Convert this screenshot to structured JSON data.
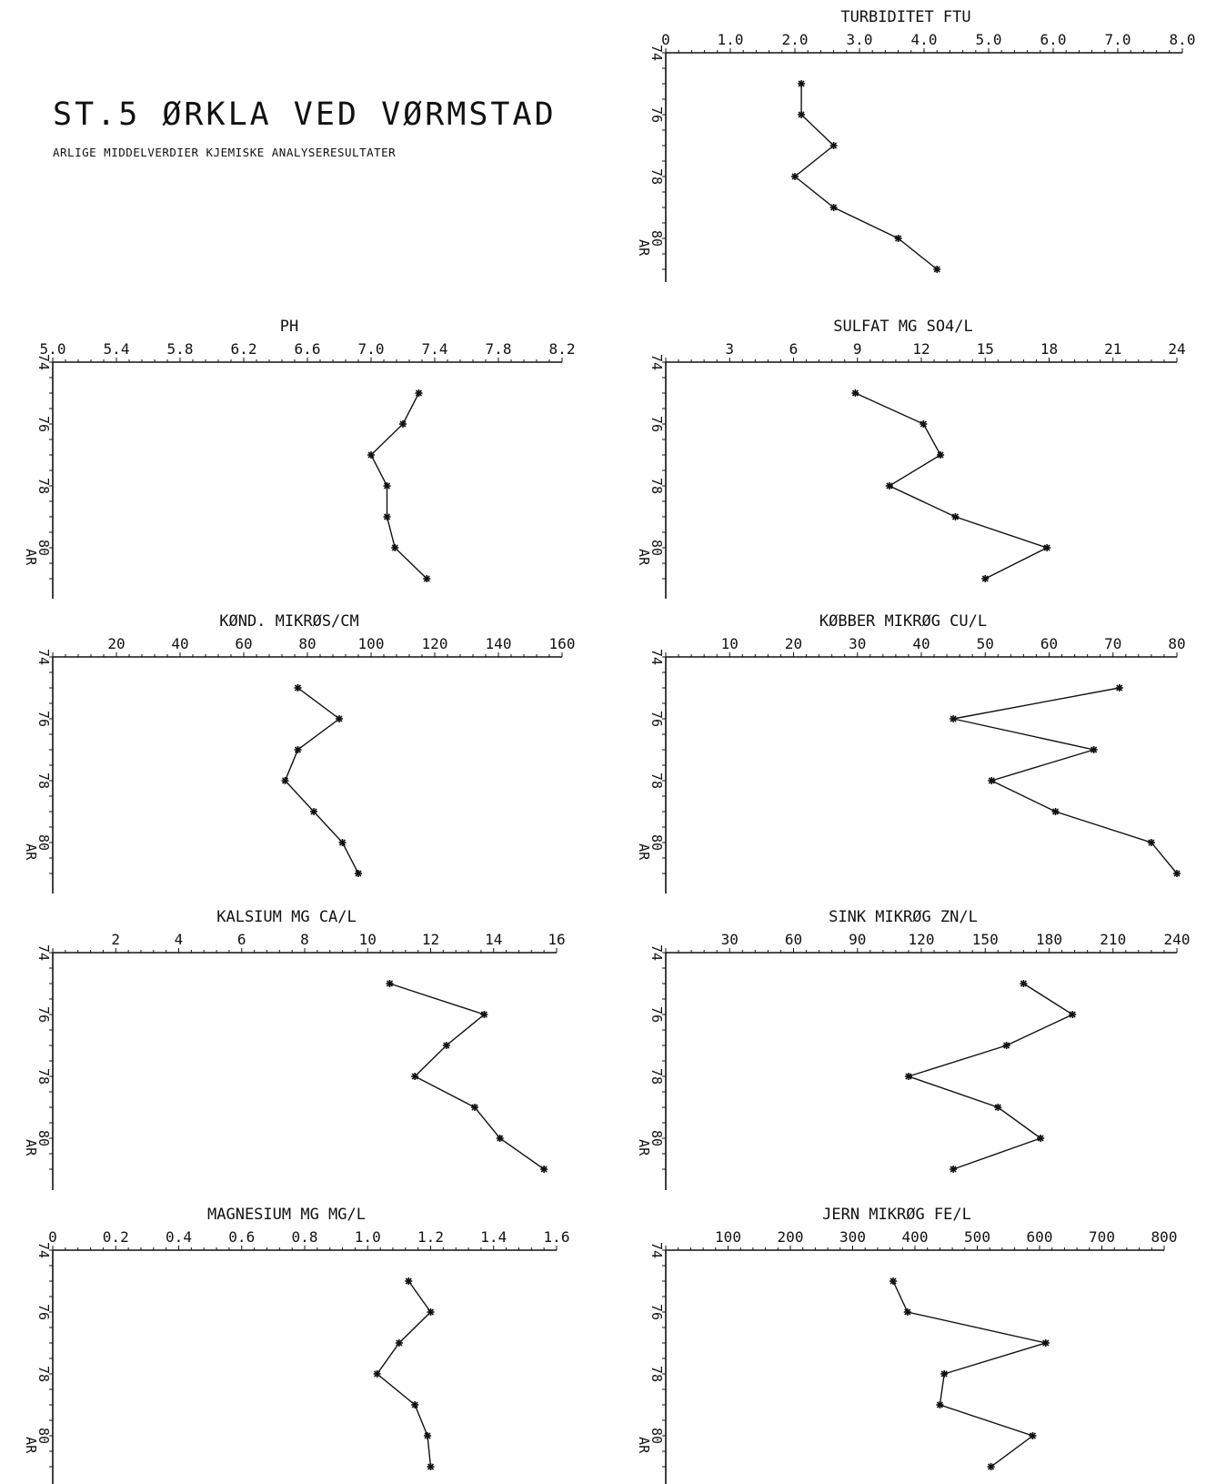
{
  "page": {
    "title": "ST.5   ØRKLA VED VØRMSTAD",
    "subtitle": "ARLIGE MIDDELVERDIER KJEMISKE ANALYSERESULTATER"
  },
  "colors": {
    "ink": "#111111",
    "background": "#ffffff"
  },
  "chart_data": [
    {
      "type": "line",
      "title": "TURBIDITET   FTU",
      "xlim": [
        0,
        8.0
      ],
      "xticks": [
        "0",
        "1.0",
        "2.0",
        "3.0",
        "4.0",
        "5.0",
        "6.0",
        "7.0",
        "8.0"
      ],
      "ylabel": "AR",
      "ylim": [
        74,
        81
      ],
      "yticks": [
        "74",
        "76",
        "78",
        "80"
      ],
      "series": [
        {
          "marker": "asterisk",
          "points": [
            [
              2.1,
              75
            ],
            [
              2.1,
              76
            ],
            [
              2.6,
              77
            ],
            [
              2.0,
              78
            ],
            [
              2.6,
              79
            ],
            [
              3.6,
              80
            ],
            [
              4.2,
              81
            ]
          ]
        }
      ]
    },
    {
      "type": "line",
      "title": "PH",
      "xlim": [
        5.0,
        8.2
      ],
      "xticks": [
        "5.0",
        "5.4",
        "5.8",
        "6.2",
        "6.6",
        "7.0",
        "7.4",
        "7.8",
        "8.2"
      ],
      "ylabel": "AR",
      "ylim": [
        74,
        81
      ],
      "yticks": [
        "74",
        "76",
        "78",
        "80"
      ],
      "series": [
        {
          "marker": "asterisk",
          "points": [
            [
              7.3,
              75
            ],
            [
              7.2,
              76
            ],
            [
              7.0,
              77
            ],
            [
              7.1,
              78
            ],
            [
              7.1,
              79
            ],
            [
              7.15,
              80
            ],
            [
              7.35,
              81
            ]
          ]
        }
      ]
    },
    {
      "type": "line",
      "title": "SULFAT   MG SO4/L",
      "xlim": [
        0,
        24
      ],
      "xticks": [
        "3",
        "6",
        "9",
        "12",
        "15",
        "18",
        "21",
        "24"
      ],
      "ylabel": "AR",
      "ylim": [
        74,
        81
      ],
      "yticks": [
        "74",
        "76",
        "78",
        "80"
      ],
      "series": [
        {
          "marker": "asterisk",
          "points": [
            [
              8.9,
              75
            ],
            [
              12.1,
              76
            ],
            [
              12.9,
              77
            ],
            [
              10.5,
              78
            ],
            [
              13.6,
              79
            ],
            [
              17.9,
              80
            ],
            [
              15.0,
              81
            ]
          ]
        }
      ]
    },
    {
      "type": "line",
      "title": "KØND.   MIKRØS/CM",
      "xlim": [
        0,
        160
      ],
      "xticks": [
        "20",
        "40",
        "60",
        "80",
        "100",
        "120",
        "140",
        "160"
      ],
      "ylabel": "AR",
      "ylim": [
        74,
        81
      ],
      "yticks": [
        "74",
        "76",
        "78",
        "80"
      ],
      "series": [
        {
          "marker": "asterisk",
          "points": [
            [
              77,
              75
            ],
            [
              90,
              76
            ],
            [
              77,
              77
            ],
            [
              73,
              78
            ],
            [
              82,
              79
            ],
            [
              91,
              80
            ],
            [
              96,
              81
            ]
          ]
        }
      ]
    },
    {
      "type": "line",
      "title": "KØBBER   MIKRØG CU/L",
      "xlim": [
        0,
        80
      ],
      "xticks": [
        "10",
        "20",
        "30",
        "40",
        "50",
        "60",
        "70",
        "80"
      ],
      "ylabel": "AR",
      "ylim": [
        74,
        81
      ],
      "yticks": [
        "74",
        "76",
        "78",
        "80"
      ],
      "series": [
        {
          "marker": "asterisk",
          "points": [
            [
              71,
              75
            ],
            [
              45,
              76
            ],
            [
              67,
              77
            ],
            [
              51,
              78
            ],
            [
              61,
              79
            ],
            [
              76,
              80
            ],
            [
              80,
              81
            ]
          ]
        }
      ]
    },
    {
      "type": "line",
      "title": "KALSIUM   MG CA/L",
      "xlim": [
        0,
        16
      ],
      "xticks": [
        "2",
        "4",
        "6",
        "8",
        "10",
        "12",
        "14",
        "16"
      ],
      "ylabel": "AR",
      "ylim": [
        74,
        81
      ],
      "yticks": [
        "74",
        "76",
        "78",
        "80"
      ],
      "series": [
        {
          "marker": "asterisk",
          "points": [
            [
              10.7,
              75
            ],
            [
              13.7,
              76
            ],
            [
              12.5,
              77
            ],
            [
              11.5,
              78
            ],
            [
              13.4,
              79
            ],
            [
              14.2,
              80
            ],
            [
              15.6,
              81
            ]
          ]
        }
      ]
    },
    {
      "type": "line",
      "title": "SINK   MIKRØG ZN/L",
      "xlim": [
        0,
        240
      ],
      "xticks": [
        "30",
        "60",
        "90",
        "120",
        "150",
        "180",
        "210",
        "240"
      ],
      "ylabel": "AR",
      "ylim": [
        74,
        81
      ],
      "yticks": [
        "74",
        "76",
        "78",
        "80"
      ],
      "series": [
        {
          "marker": "asterisk",
          "points": [
            [
              168,
              75
            ],
            [
              191,
              76
            ],
            [
              160,
              77
            ],
            [
              114,
              78
            ],
            [
              156,
              79
            ],
            [
              176,
              80
            ],
            [
              135,
              81
            ]
          ]
        }
      ]
    },
    {
      "type": "line",
      "title": "MAGNESIUM   MG MG/L",
      "xlim": [
        0,
        1.6
      ],
      "xticks": [
        "0",
        "0.2",
        "0.4",
        "0.6",
        "0.8",
        "1.0",
        "1.2",
        "1.4",
        "1.6"
      ],
      "ylabel": "AR",
      "ylim": [
        74,
        81
      ],
      "yticks": [
        "74",
        "76",
        "78",
        "80"
      ],
      "series": [
        {
          "marker": "asterisk",
          "points": [
            [
              1.13,
              75
            ],
            [
              1.2,
              76
            ],
            [
              1.1,
              77
            ],
            [
              1.03,
              78
            ],
            [
              1.15,
              79
            ],
            [
              1.19,
              80
            ],
            [
              1.2,
              81
            ]
          ]
        }
      ]
    },
    {
      "type": "line",
      "title": "JERN   MIKRØG FE/L",
      "xlim": [
        0,
        800
      ],
      "xticks": [
        "100",
        "200",
        "300",
        "400",
        "500",
        "600",
        "700",
        "800"
      ],
      "ylabel": "AR",
      "ylim": [
        74,
        81
      ],
      "yticks": [
        "74",
        "76",
        "78",
        "80"
      ],
      "series": [
        {
          "marker": "asterisk",
          "points": [
            [
              365,
              75
            ],
            [
              388,
              76
            ],
            [
              610,
              77
            ],
            [
              447,
              78
            ],
            [
              440,
              79
            ],
            [
              589,
              80
            ],
            [
              522,
              81
            ]
          ]
        }
      ]
    }
  ]
}
